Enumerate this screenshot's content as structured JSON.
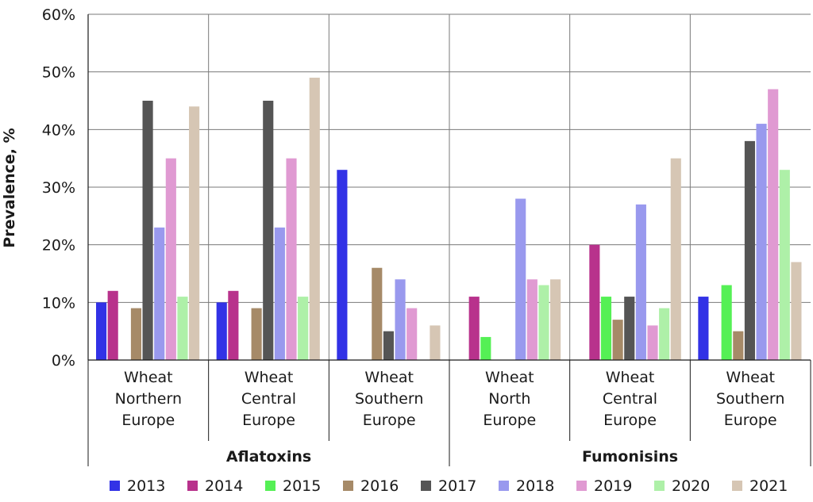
{
  "chart_data": {
    "type": "bar",
    "ylabel": "Prevalence, %",
    "ylim": [
      0,
      60
    ],
    "yticks": [
      0,
      10,
      20,
      30,
      40,
      50,
      60
    ],
    "ytick_labels": [
      "0%",
      "10%",
      "20%",
      "30%",
      "40%",
      "50%",
      "60%"
    ],
    "grid": true,
    "legend_position": "bottom",
    "groups": [
      {
        "label": "Aflatoxins",
        "categories": [
          0,
          1,
          2
        ]
      },
      {
        "label": "Fumonisins",
        "categories": [
          3,
          4,
          5
        ]
      }
    ],
    "categories": [
      [
        "Wheat",
        "Northern",
        "Europe"
      ],
      [
        "Wheat",
        "Central",
        "Europe"
      ],
      [
        "Wheat",
        "Southern",
        "Europe"
      ],
      [
        "Wheat",
        "North",
        "Europe"
      ],
      [
        "Wheat",
        "Central",
        "Europe"
      ],
      [
        "Wheat",
        "Southern",
        "Europe"
      ]
    ],
    "series": [
      {
        "name": "2013",
        "color": "#3232e6",
        "values": [
          10,
          10,
          33,
          null,
          null,
          11
        ]
      },
      {
        "name": "2014",
        "color": "#b8328c",
        "values": [
          12,
          12,
          null,
          11,
          20,
          null
        ]
      },
      {
        "name": "2015",
        "color": "#55f055",
        "values": [
          null,
          null,
          null,
          4,
          11,
          13
        ]
      },
      {
        "name": "2016",
        "color": "#a68a68",
        "values": [
          9,
          9,
          16,
          null,
          7,
          5
        ]
      },
      {
        "name": "2017",
        "color": "#555555",
        "values": [
          45,
          45,
          5,
          null,
          11,
          38
        ]
      },
      {
        "name": "2018",
        "color": "#9999ee",
        "values": [
          23,
          23,
          14,
          28,
          27,
          41
        ]
      },
      {
        "name": "2019",
        "color": "#e09ad2",
        "values": [
          35,
          35,
          9,
          14,
          6,
          47
        ]
      },
      {
        "name": "2020",
        "color": "#aef0a8",
        "values": [
          11,
          11,
          null,
          13,
          9,
          33
        ]
      },
      {
        "name": "2021",
        "color": "#d6c6b4",
        "values": [
          44,
          49,
          6,
          14,
          35,
          17
        ]
      }
    ]
  }
}
